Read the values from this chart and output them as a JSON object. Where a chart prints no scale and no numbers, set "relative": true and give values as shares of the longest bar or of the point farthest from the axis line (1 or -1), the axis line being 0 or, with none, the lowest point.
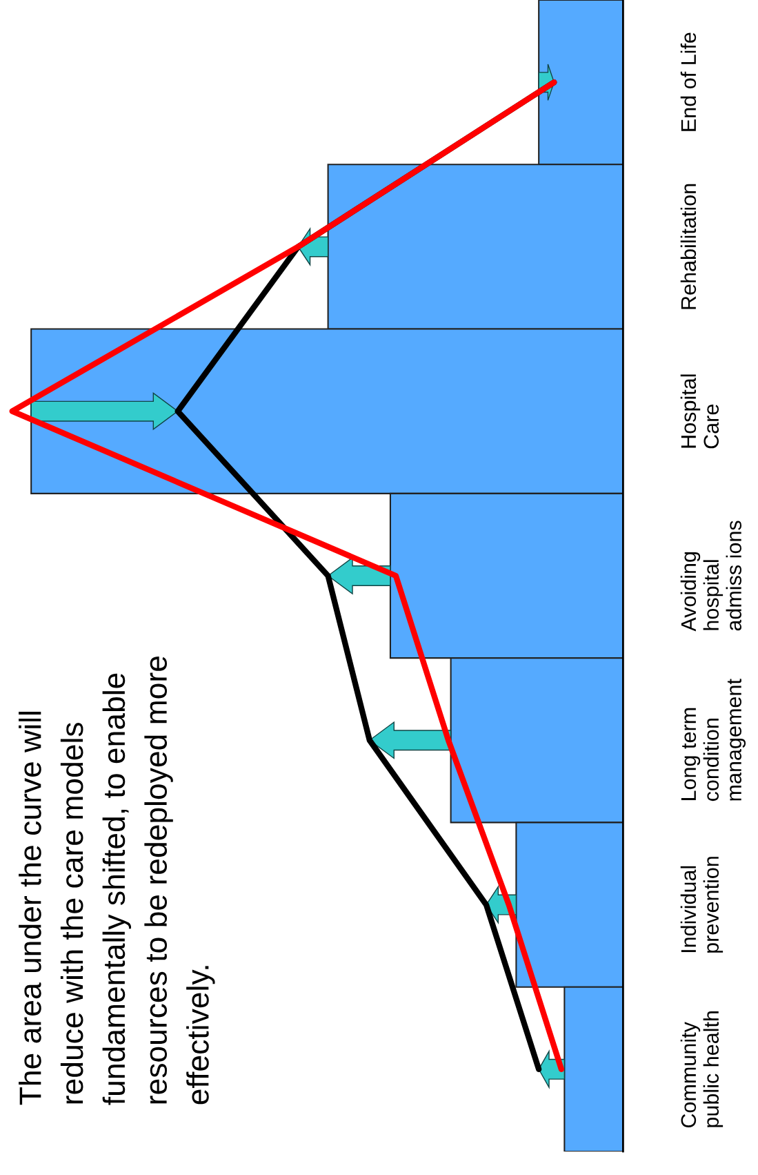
{
  "chart_data": {
    "type": "bar",
    "orientation": "horizontal",
    "relative": true,
    "grid": false,
    "legend": false,
    "categories": [
      "End of Life",
      "Rehabilitation",
      "Hospital\nCare",
      "Avoiding\nhospital\nadmiss ions",
      "Long term\ncondition\nmanagement",
      "Individual\nprevention",
      "Community\npublic health"
    ],
    "series": [
      {
        "color": "#55aaff",
        "values": [
          0.138,
          0.483,
          0.969,
          0.381,
          0.282,
          0.175,
          0.096
        ]
      },
      {
        "type": "line",
        "color": "#000000",
        "values": [
          0.113,
          0.532,
          0.729,
          0.483,
          0.415,
          0.224,
          0.138
        ]
      },
      {
        "type": "line",
        "color": "#ff0000",
        "values": [
          0.113,
          0.532,
          1.0,
          0.372,
          0.286,
          0.187,
          0.101
        ]
      }
    ],
    "annotations": [
      "The area under the curve will\nreduce with the care models\nfundamentally shifted, to enable\nresources to be redeployed more\neffectively."
    ]
  }
}
